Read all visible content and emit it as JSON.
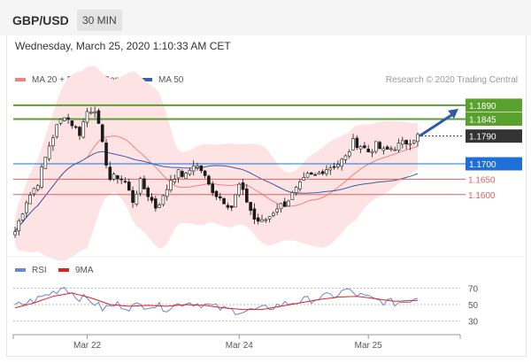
{
  "header": {
    "pair": "GBP/USD",
    "interval": "30 MIN"
  },
  "datetime": "Wednesday, March 25, 2020 1:10:33 AM CET",
  "legend": {
    "ma20": {
      "label": "MA 20 + Bollinger Bands",
      "color": "#f08080"
    },
    "ma50": {
      "label": "MA 50",
      "color": "#3a5fa8"
    },
    "credit": "Research © 2020 Trading Central"
  },
  "rsi_legend": {
    "rsi": {
      "label": "RSI",
      "color": "#6a86d6"
    },
    "ma9": {
      "label": "9MA",
      "color": "#e02020"
    }
  },
  "chart_data": [
    {
      "type": "candlestick",
      "title": "GBP/USD 30 MIN",
      "ylim": [
        1.145,
        1.195
      ],
      "x_ticks": [
        "Mar 22",
        "Mar 24",
        "Mar 25"
      ],
      "x_tick_positions": [
        19,
        59,
        93
      ],
      "n_bars": 107,
      "levels": [
        {
          "value": 1.189,
          "label": "1.1890",
          "kind": "resistance",
          "color": "#5aa02c"
        },
        {
          "value": 1.1845,
          "label": "1.1845",
          "kind": "resistance",
          "color": "#5aa02c"
        },
        {
          "value": 1.179,
          "label": "1.1790",
          "kind": "last",
          "color": "#333333"
        },
        {
          "value": 1.17,
          "label": "1.1700",
          "kind": "pivot",
          "color": "#1f6fd6"
        },
        {
          "value": 1.165,
          "label": "1.1650",
          "kind": "support",
          "color": "#e06060"
        },
        {
          "value": 1.16,
          "label": "1.1600",
          "kind": "support",
          "color": "#e06060"
        }
      ],
      "close_keypoints": [
        [
          0,
          1.148
        ],
        [
          3,
          1.158
        ],
        [
          6,
          1.164
        ],
        [
          9,
          1.176
        ],
        [
          11,
          1.182
        ],
        [
          13,
          1.186
        ],
        [
          15,
          1.183
        ],
        [
          17,
          1.18
        ],
        [
          19,
          1.187
        ],
        [
          21,
          1.188
        ],
        [
          23,
          1.176
        ],
        [
          25,
          1.165
        ],
        [
          27,
          1.166
        ],
        [
          29,
          1.164
        ],
        [
          31,
          1.158
        ],
        [
          33,
          1.164
        ],
        [
          35,
          1.16
        ],
        [
          37,
          1.156
        ],
        [
          39,
          1.159
        ],
        [
          41,
          1.165
        ],
        [
          43,
          1.167
        ],
        [
          45,
          1.166
        ],
        [
          47,
          1.17
        ],
        [
          49,
          1.168
        ],
        [
          51,
          1.163
        ],
        [
          53,
          1.16
        ],
        [
          55,
          1.158
        ],
        [
          57,
          1.156
        ],
        [
          59,
          1.163
        ],
        [
          61,
          1.158
        ],
        [
          63,
          1.152
        ],
        [
          65,
          1.151
        ],
        [
          67,
          1.153
        ],
        [
          69,
          1.156
        ],
        [
          71,
          1.157
        ],
        [
          73,
          1.16
        ],
        [
          75,
          1.163
        ],
        [
          77,
          1.166
        ],
        [
          79,
          1.166
        ],
        [
          81,
          1.168
        ],
        [
          83,
          1.169
        ],
        [
          85,
          1.17
        ],
        [
          87,
          1.172
        ],
        [
          89,
          1.177
        ],
        [
          91,
          1.176
        ],
        [
          93,
          1.174
        ],
        [
          95,
          1.176
        ],
        [
          97,
          1.174
        ],
        [
          99,
          1.175
        ],
        [
          101,
          1.176
        ],
        [
          103,
          1.177
        ],
        [
          106,
          1.179
        ]
      ],
      "forecast": {
        "from_bar": 106,
        "from": 1.179,
        "to": 1.189
      }
    },
    {
      "type": "line",
      "title": "RSI",
      "ylim": [
        20,
        80
      ],
      "y_ticks": [
        70,
        50,
        30
      ],
      "series": [
        {
          "name": "RSI",
          "keypoints": [
            [
              0,
              48
            ],
            [
              5,
              55
            ],
            [
              10,
              65
            ],
            [
              13,
              72
            ],
            [
              16,
              60
            ],
            [
              20,
              55
            ],
            [
              23,
              45
            ],
            [
              27,
              50
            ],
            [
              30,
              47
            ],
            [
              35,
              50
            ],
            [
              40,
              46
            ],
            [
              45,
              53
            ],
            [
              50,
              50
            ],
            [
              55,
              44
            ],
            [
              60,
              42
            ],
            [
              65,
              44
            ],
            [
              70,
              50
            ],
            [
              75,
              54
            ],
            [
              80,
              58
            ],
            [
              85,
              62
            ],
            [
              87,
              68
            ],
            [
              90,
              62
            ],
            [
              95,
              55
            ],
            [
              100,
              52
            ],
            [
              103,
              54
            ],
            [
              106,
              60
            ]
          ]
        },
        {
          "name": "9MA",
          "keypoints": [
            [
              0,
              46
            ],
            [
              5,
              52
            ],
            [
              10,
              60
            ],
            [
              15,
              64
            ],
            [
              20,
              58
            ],
            [
              25,
              50
            ],
            [
              30,
              48
            ],
            [
              35,
              49
            ],
            [
              40,
              48
            ],
            [
              45,
              50
            ],
            [
              50,
              49
            ],
            [
              55,
              46
            ],
            [
              60,
              44
            ],
            [
              65,
              44
            ],
            [
              70,
              48
            ],
            [
              75,
              52
            ],
            [
              80,
              56
            ],
            [
              85,
              59
            ],
            [
              90,
              60
            ],
            [
              95,
              57
            ],
            [
              100,
              54
            ],
            [
              106,
              55
            ]
          ]
        }
      ]
    }
  ]
}
